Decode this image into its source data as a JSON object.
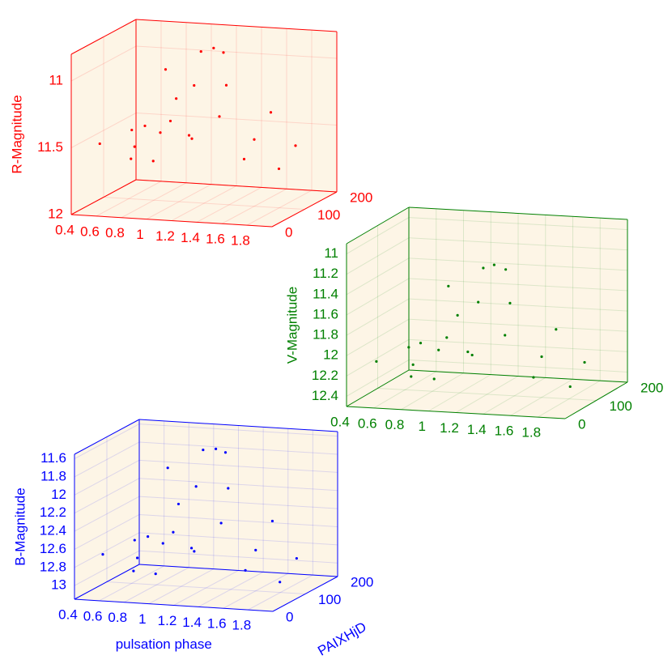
{
  "chart_data": [
    {
      "type": "scatter3d",
      "color": "#ff0000",
      "zlabel": "R-Magnitude",
      "xlim": [
        0.4,
        2.0
      ],
      "ylim": [
        0,
        200
      ],
      "zlim": [
        12,
        10.8
      ],
      "xticks": [
        0.4,
        0.6,
        0.8,
        1,
        1.2,
        1.4,
        1.6,
        1.8
      ],
      "yticks": [
        0,
        100,
        200
      ],
      "zticks": [
        11,
        11.5,
        12
      ],
      "x": [
        0.55,
        0.6,
        0.65,
        0.7,
        0.75,
        0.8,
        0.85,
        0.9,
        0.95,
        1.0,
        1.03,
        1.07,
        1.1,
        1.15,
        1.2,
        1.25,
        1.3,
        1.4,
        1.5,
        1.6,
        1.7,
        1.8,
        1.9
      ],
      "y": [
        30,
        150,
        90,
        190,
        60,
        120,
        10,
        170,
        40,
        140,
        80,
        180,
        20,
        110,
        160,
        50,
        130,
        70,
        190,
        100,
        30,
        150,
        60
      ],
      "z": [
        11.5,
        11.52,
        11.47,
        11.53,
        11.55,
        11.52,
        11.57,
        11.6,
        11.62,
        11.58,
        11.2,
        10.95,
        10.9,
        10.88,
        10.95,
        11.05,
        11.15,
        11.3,
        11.42,
        11.5,
        11.55,
        11.6,
        11.65
      ]
    },
    {
      "type": "scatter3d",
      "color": "#008000",
      "zlabel": "V-Magnitude",
      "xlim": [
        0.4,
        2.0
      ],
      "ylim": [
        0,
        200
      ],
      "zlim": [
        12.5,
        10.9
      ],
      "xticks": [
        0.4,
        0.6,
        0.8,
        1,
        1.2,
        1.4,
        1.6,
        1.8
      ],
      "yticks": [
        0,
        100,
        200
      ],
      "zticks": [
        11,
        11.2,
        11.4,
        11.6,
        11.8,
        12,
        12.2,
        12.4
      ],
      "x": [
        0.55,
        0.6,
        0.65,
        0.7,
        0.75,
        0.8,
        0.85,
        0.9,
        0.95,
        1.0,
        1.03,
        1.07,
        1.1,
        1.15,
        1.2,
        1.25,
        1.3,
        1.4,
        1.5,
        1.6,
        1.7,
        1.8,
        1.9
      ],
      "y": [
        30,
        150,
        90,
        190,
        60,
        120,
        10,
        170,
        40,
        140,
        80,
        180,
        20,
        110,
        160,
        50,
        130,
        70,
        190,
        100,
        30,
        150,
        60
      ],
      "z": [
        12.1,
        12.13,
        12.06,
        12.14,
        12.17,
        12.13,
        12.19,
        12.23,
        12.26,
        12.2,
        11.7,
        11.38,
        11.3,
        11.28,
        11.38,
        11.5,
        11.65,
        11.85,
        12.0,
        12.1,
        12.17,
        12.23,
        12.3
      ]
    },
    {
      "type": "scatter3d",
      "color": "#0000ff",
      "zlabel": "B-Magnitude",
      "xlabel": "pulsation phase",
      "ylabel": "PAIXHjD",
      "xlim": [
        0.4,
        2.0
      ],
      "ylim": [
        0,
        200
      ],
      "zlim": [
        13.15,
        11.55
      ],
      "xticks": [
        0.4,
        0.6,
        0.8,
        1,
        1.2,
        1.4,
        1.6,
        1.8
      ],
      "yticks": [
        0,
        100,
        200
      ],
      "zticks": [
        11.6,
        11.8,
        12,
        12.2,
        12.4,
        12.6,
        12.8,
        13
      ],
      "x": [
        0.55,
        0.6,
        0.65,
        0.7,
        0.75,
        0.8,
        0.85,
        0.9,
        0.95,
        1.0,
        1.03,
        1.07,
        1.1,
        1.15,
        1.2,
        1.25,
        1.3,
        1.4,
        1.5,
        1.6,
        1.7,
        1.8,
        1.9
      ],
      "y": [
        30,
        150,
        90,
        190,
        60,
        120,
        10,
        170,
        40,
        140,
        80,
        180,
        20,
        110,
        160,
        50,
        130,
        70,
        190,
        100,
        30,
        150,
        60
      ],
      "z": [
        12.7,
        12.73,
        12.65,
        12.75,
        12.78,
        12.73,
        12.82,
        12.87,
        12.9,
        12.84,
        12.2,
        11.78,
        11.68,
        11.65,
        11.77,
        11.93,
        12.1,
        12.36,
        12.56,
        12.7,
        12.78,
        12.87,
        12.95
      ]
    }
  ]
}
